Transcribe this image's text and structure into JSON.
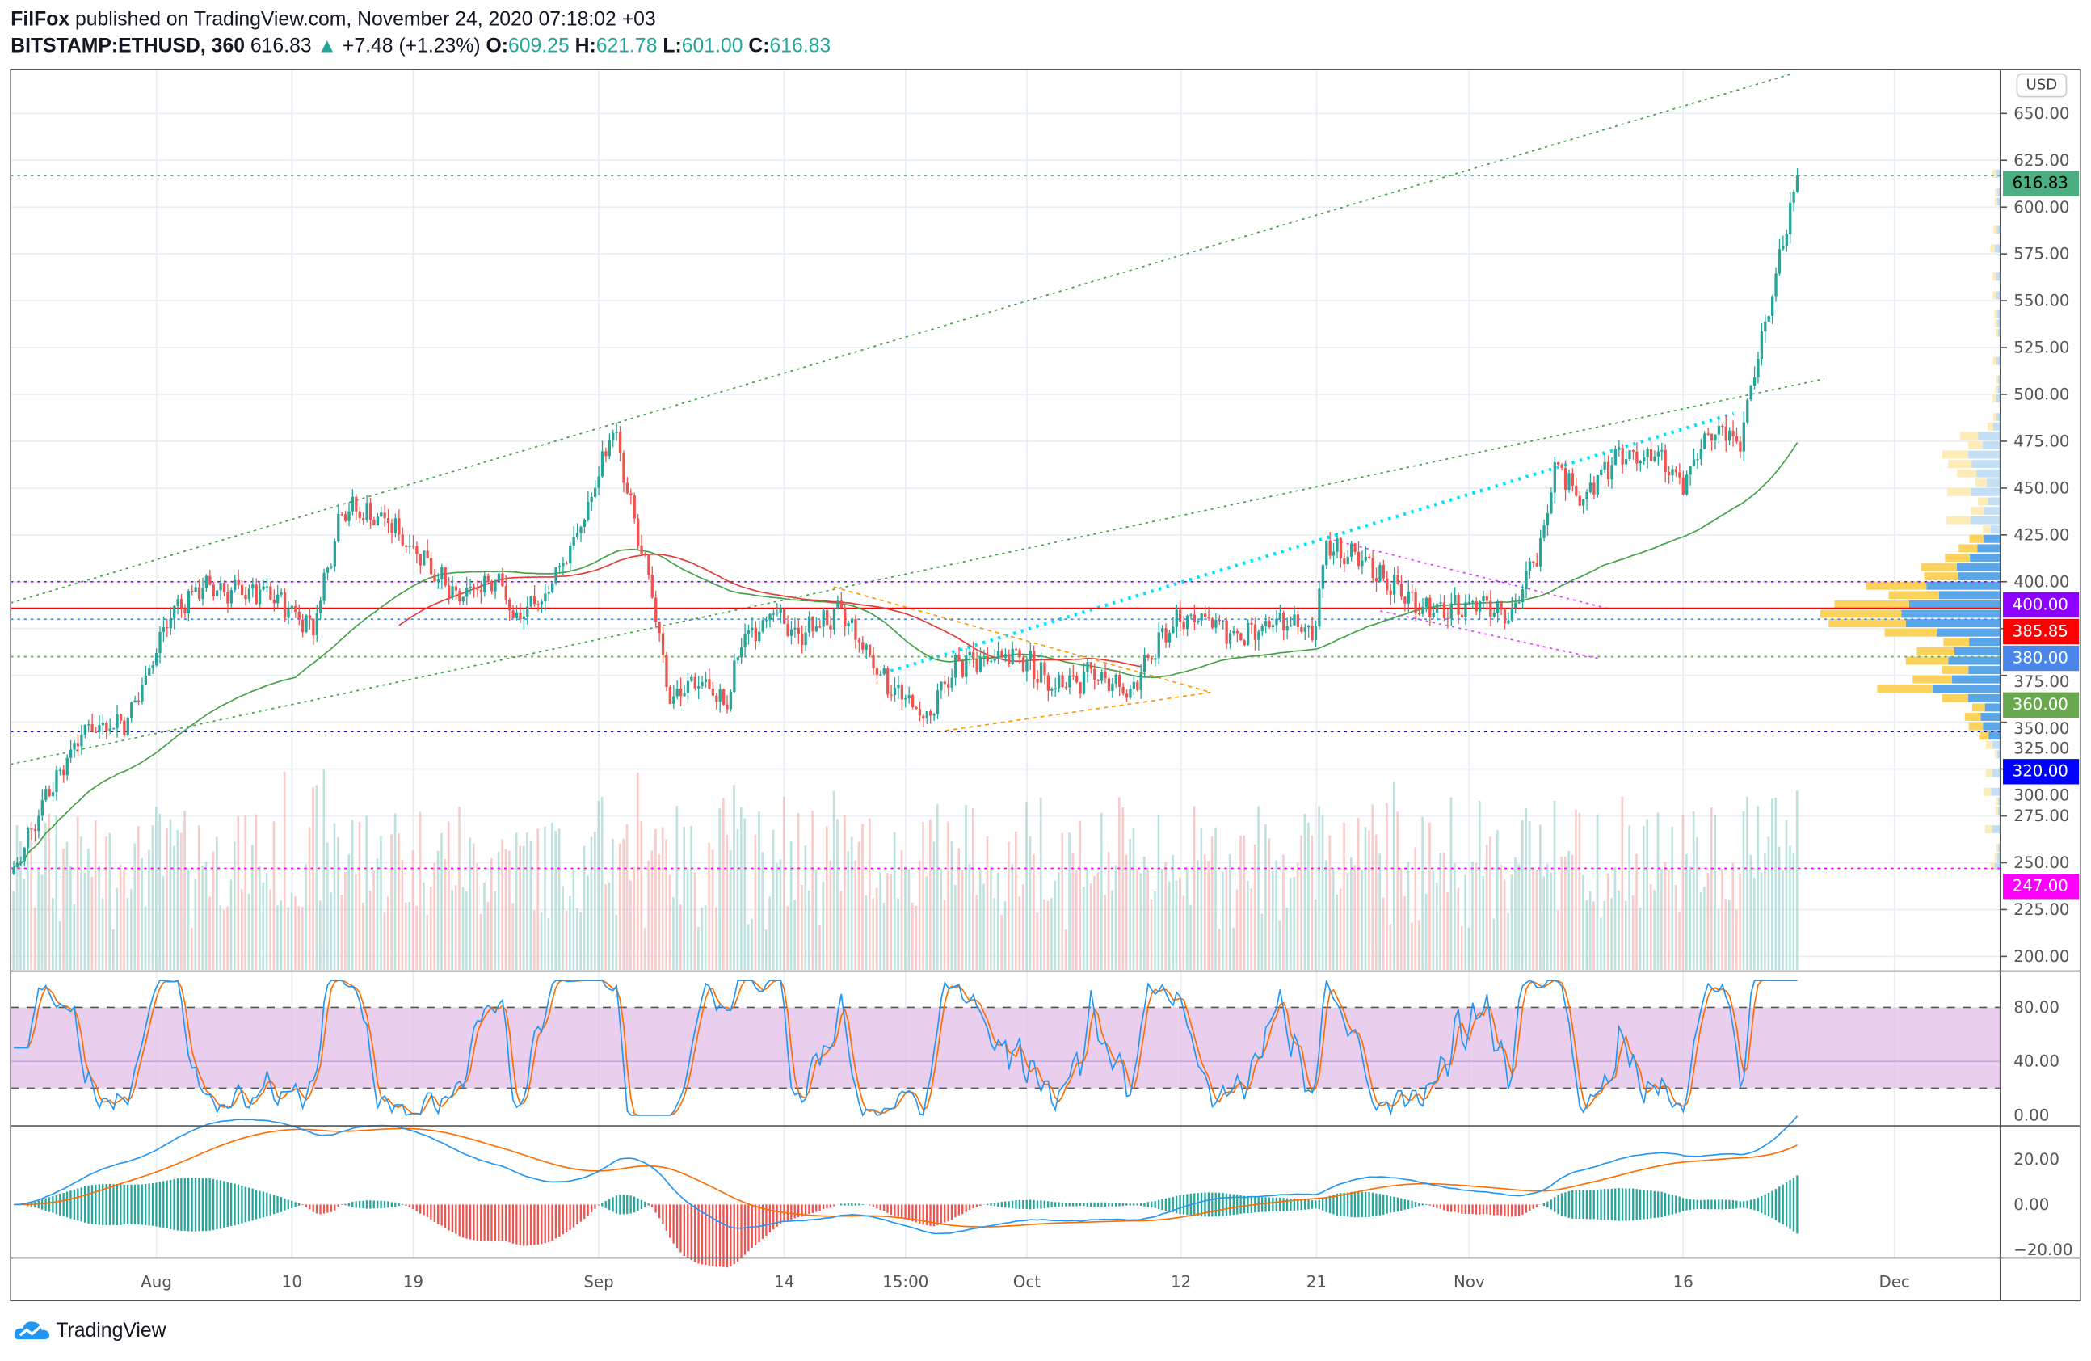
{
  "header": {
    "author": "FilFox",
    "published": "published on TradingView.com, November 24, 2020 07:18:02 +03",
    "symbol": "BITSTAMP:ETHUSD, 360",
    "last": "616.83",
    "change": "+7.48 (+1.23%)",
    "o_label": "O:",
    "o": "609.25",
    "h_label": "H:",
    "h": "621.78",
    "l_label": "L:",
    "l": "601.00",
    "c_label": "C:",
    "c": "616.83"
  },
  "currency": "USD",
  "brand": "TradingView",
  "colors": {
    "up": "#26a69a",
    "down": "#ef5350",
    "ma_fast": "#43a047",
    "ma_slow": "#e53935",
    "stoch_k": "#2196f3",
    "stoch_d": "#ff6d00",
    "stoch_band": "#e1bee7"
  },
  "price_axis": [
    "650.00",
    "625.00",
    "600.00",
    "575.00",
    "550.00",
    "525.00",
    "500.00",
    "475.00",
    "450.00",
    "425.00",
    "400.00",
    "375.00",
    "350.00",
    "325.00",
    "300.00",
    "275.00",
    "250.00",
    "225.00",
    "200.00"
  ],
  "price_tags": [
    {
      "label": "616.83",
      "value": 616.83,
      "color": "#4caf82"
    },
    {
      "label": "400.00",
      "value": 400,
      "color": "#8e00ff"
    },
    {
      "label": "385.85",
      "value": 385.85,
      "color": "#ff0000"
    },
    {
      "label": "380.00",
      "value": 380,
      "color": "#4a86e8"
    },
    {
      "label": "360.00",
      "value": 360,
      "color": "#6aa84f"
    },
    {
      "label": "320.00",
      "value": 320,
      "color": "#0000ff"
    },
    {
      "label": "247.00",
      "value": 247,
      "color": "#ff00ff"
    }
  ],
  "stoch_axis": [
    "80.00",
    "40.00",
    "0.00"
  ],
  "macd_axis": [
    "20.00",
    "0.00",
    "−20.00"
  ],
  "time_axis": [
    {
      "label": "Aug",
      "day": -31
    },
    {
      "label": "10",
      "day": -21.5
    },
    {
      "label": "19",
      "day": -13
    },
    {
      "label": "Sep",
      "day": 0
    },
    {
      "label": "14",
      "day": 13
    },
    {
      "label": "15:00",
      "day": 21.5
    },
    {
      "label": "Oct",
      "day": 30
    },
    {
      "label": "12",
      "day": 40.8
    },
    {
      "label": "21",
      "day": 50.3
    },
    {
      "label": "Nov",
      "day": 61
    },
    {
      "label": "16",
      "day": 76
    },
    {
      "label": "Dec",
      "day": 90.8
    }
  ],
  "chart_data": {
    "type": "candlestick",
    "interval_minutes": 360,
    "day_origin": "2020-09-01",
    "ylim": [
      190,
      660
    ],
    "close_path": [
      [
        "2020-07-22",
        244
      ],
      [
        "2020-07-24",
        283
      ],
      [
        "2020-07-27",
        322
      ],
      [
        "2020-07-30",
        326
      ],
      [
        "2020-08-02",
        383
      ],
      [
        "2020-08-04",
        397
      ],
      [
        "2020-08-09",
        393
      ],
      [
        "2020-08-12",
        376
      ],
      [
        "2020-08-14",
        440
      ],
      [
        "2020-08-17",
        433
      ],
      [
        "2020-08-20",
        411
      ],
      [
        "2020-08-22",
        390
      ],
      [
        "2020-08-25",
        404
      ],
      [
        "2020-08-26",
        379
      ],
      [
        "2020-08-28",
        390
      ],
      [
        "2020-08-31",
        433
      ],
      [
        "2020-09-02",
        483
      ],
      [
        "2020-09-03",
        447
      ],
      [
        "2020-09-05",
        383
      ],
      [
        "2020-09-06",
        337
      ],
      [
        "2020-09-08",
        348
      ],
      [
        "2020-09-10",
        333
      ],
      [
        "2020-09-11",
        369
      ],
      [
        "2020-09-13",
        383
      ],
      [
        "2020-09-15",
        372
      ],
      [
        "2020-09-18",
        383
      ],
      [
        "2020-09-21",
        348
      ],
      [
        "2020-09-24",
        326
      ],
      [
        "2020-09-26",
        355
      ],
      [
        "2020-09-29",
        362
      ],
      [
        "2020-10-01",
        358
      ],
      [
        "2020-10-03",
        344
      ],
      [
        "2020-10-06",
        351
      ],
      [
        "2020-10-08",
        340
      ],
      [
        "2020-10-09",
        351
      ],
      [
        "2020-10-11",
        376
      ],
      [
        "2020-10-13",
        383
      ],
      [
        "2020-10-16",
        369
      ],
      [
        "2020-10-19",
        379
      ],
      [
        "2020-10-21",
        372
      ],
      [
        "2020-10-22",
        419
      ],
      [
        "2020-10-25",
        408
      ],
      [
        "2020-10-28",
        390
      ],
      [
        "2020-10-30",
        383
      ],
      [
        "2020-11-02",
        390
      ],
      [
        "2020-11-04",
        383
      ],
      [
        "2020-11-06",
        419
      ],
      [
        "2020-11-07",
        465
      ],
      [
        "2020-11-09",
        443
      ],
      [
        "2020-11-11",
        465
      ],
      [
        "2020-11-14",
        468
      ],
      [
        "2020-11-16",
        451
      ],
      [
        "2020-11-18",
        483
      ],
      [
        "2020-11-20",
        476
      ],
      [
        "2020-11-21",
        511
      ],
      [
        "2020-11-22",
        547
      ],
      [
        "2020-11-23",
        582
      ],
      [
        "2020-11-24",
        616.83
      ]
    ],
    "horizontal_levels": [
      616.83,
      400,
      385.85,
      380,
      360,
      320,
      247
    ],
    "indicators": [
      "MA",
      "Volume",
      "Volume Profile",
      "Stochastic RSI",
      "MACD"
    ],
    "stoch_bands": [
      20,
      80
    ],
    "stoch_ylim": [
      0,
      100
    ],
    "macd_ylim": [
      -22,
      35
    ]
  }
}
